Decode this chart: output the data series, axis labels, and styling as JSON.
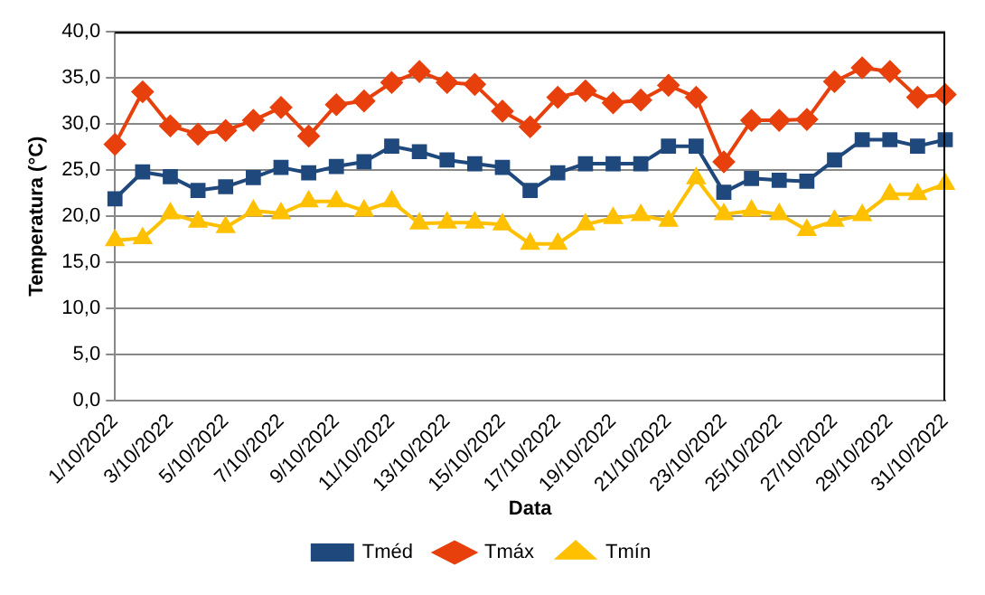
{
  "chart_data": {
    "type": "line",
    "xlabel": "Data",
    "ylabel": "Temperatura (°C)",
    "categories": [
      "1/10/2022",
      null,
      "3/10/2022",
      null,
      "5/10/2022",
      null,
      "7/10/2022",
      null,
      "9/10/2022",
      null,
      "11/10/2022",
      null,
      "13/10/2022",
      null,
      "15/10/2022",
      null,
      "17/10/2022",
      null,
      "19/10/2022",
      null,
      "21/10/2022",
      null,
      "23/10/2022",
      null,
      "25/10/2022",
      null,
      "27/10/2022",
      null,
      "29/10/2022",
      null,
      "31/10/2022"
    ],
    "series": [
      {
        "name": "Tméd",
        "color": "#1f497d",
        "marker": "square",
        "values": [
          21.9,
          24.8,
          24.3,
          22.8,
          23.2,
          24.2,
          25.3,
          24.7,
          25.4,
          25.9,
          27.6,
          27.0,
          26.1,
          25.7,
          25.3,
          22.8,
          24.7,
          25.7,
          25.7,
          25.7,
          27.6,
          27.6,
          22.6,
          24.1,
          23.9,
          23.8,
          26.1,
          28.3,
          28.3,
          27.6,
          28.3
        ]
      },
      {
        "name": "Tmáx",
        "color": "#e8400c",
        "marker": "diamond",
        "values": [
          27.8,
          33.5,
          29.8,
          28.9,
          29.3,
          30.4,
          31.8,
          28.7,
          32.1,
          32.5,
          34.5,
          35.7,
          34.5,
          34.3,
          31.4,
          29.7,
          32.9,
          33.6,
          32.3,
          32.6,
          34.2,
          32.9,
          25.9,
          30.4,
          30.4,
          30.5,
          34.6,
          36.1,
          35.7,
          32.9,
          33.2
        ]
      },
      {
        "name": "Tmín",
        "color": "#ffc000",
        "marker": "triangle",
        "values": [
          17.4,
          17.6,
          20.3,
          19.4,
          18.8,
          20.6,
          20.3,
          21.6,
          21.6,
          20.6,
          21.6,
          19.2,
          19.3,
          19.3,
          19.1,
          17.0,
          17.0,
          19.1,
          19.8,
          20.1,
          19.5,
          24.1,
          20.2,
          20.6,
          20.2,
          18.5,
          19.5,
          20.1,
          22.4,
          22.4,
          23.5
        ]
      }
    ],
    "ylim": [
      0,
      40
    ],
    "yticks": [
      {
        "value": 0,
        "label": "0,0"
      },
      {
        "value": 5,
        "label": "5,0"
      },
      {
        "value": 10,
        "label": "10,0"
      },
      {
        "value": 15,
        "label": "15,0"
      },
      {
        "value": 20,
        "label": "20,0"
      },
      {
        "value": 25,
        "label": "25,0"
      },
      {
        "value": 30,
        "label": "30,0"
      },
      {
        "value": 35,
        "label": "35,0"
      },
      {
        "value": 40,
        "label": "40,0"
      }
    ],
    "grid": "y",
    "legend": "bottom",
    "line_style": "solid"
  }
}
